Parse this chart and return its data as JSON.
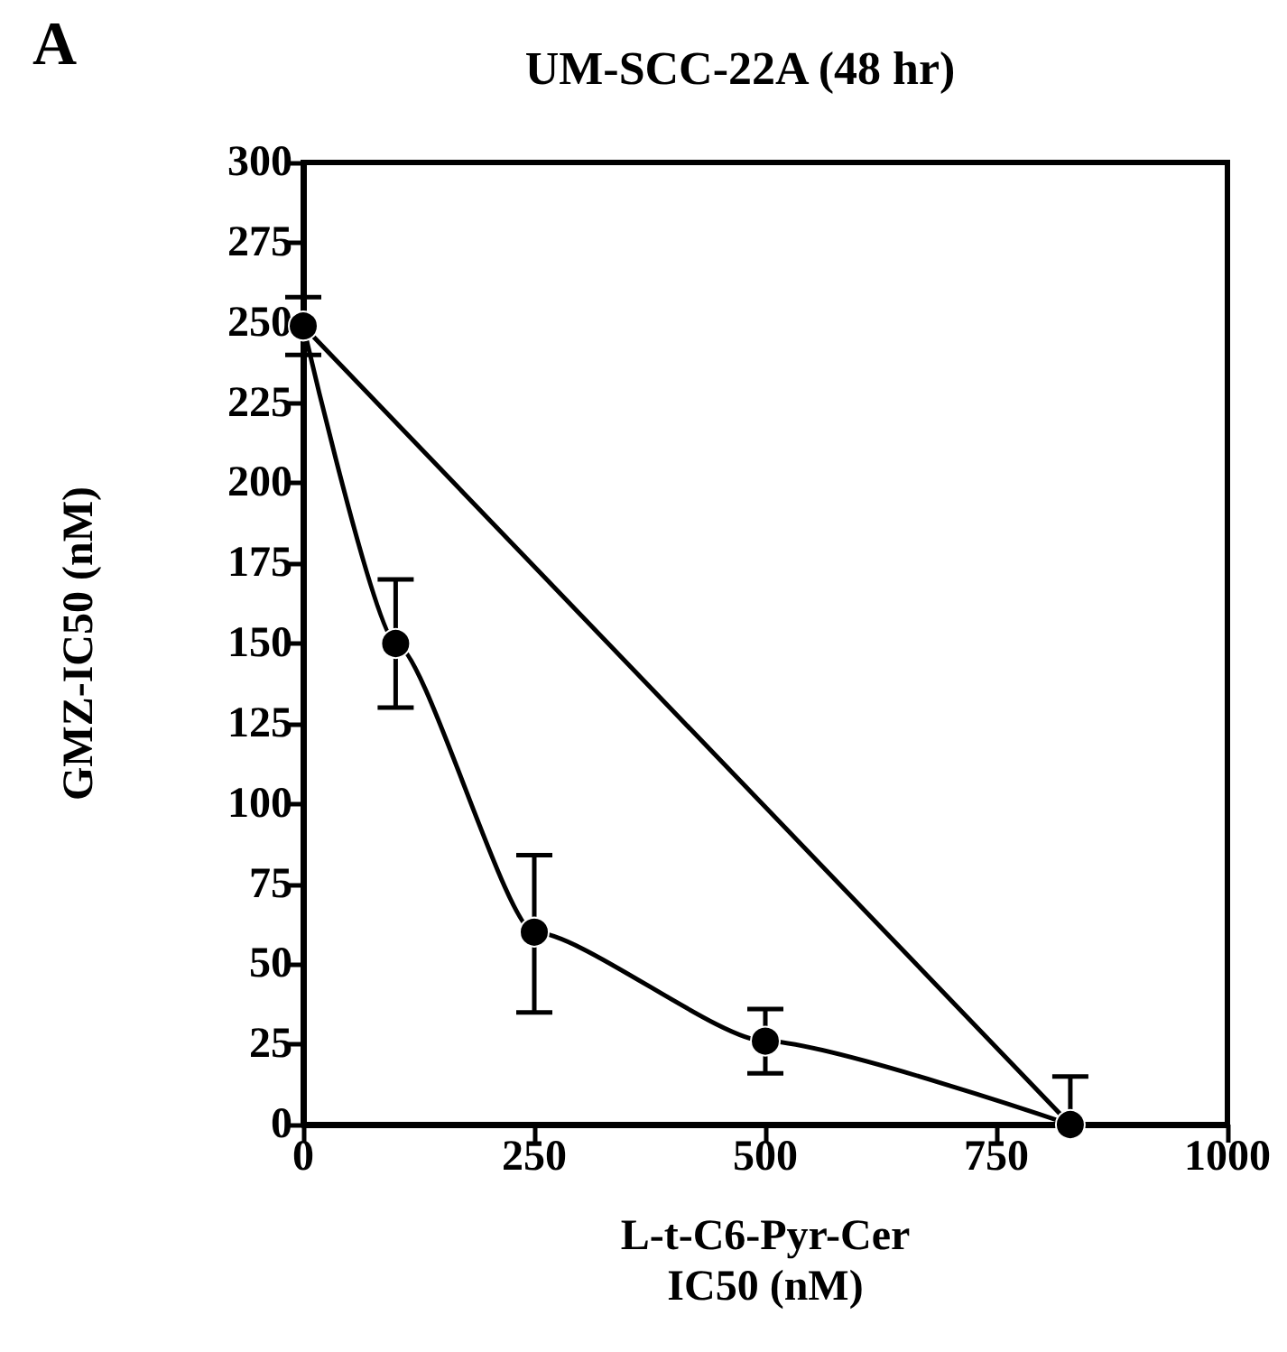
{
  "chart_data": {
    "type": "line",
    "title": "UM-SCC-22A (48 hr)",
    "xlabel": "L-t-C6-Pyr-Cer\nIC50 (nM)",
    "ylabel": "GMZ-IC50 (nM)",
    "annotations": [
      "A"
    ],
    "xlim": [
      0,
      1000
    ],
    "xticks": [
      0,
      250,
      500,
      750,
      1000
    ],
    "ylim": [
      0,
      300
    ],
    "yticks": [
      0,
      25,
      50,
      75,
      100,
      125,
      150,
      175,
      200,
      225,
      250,
      275,
      300
    ],
    "grid": false,
    "marker": "circle",
    "line_style": "solid",
    "series": [
      {
        "color": "#000000",
        "x": [
          0,
          100,
          250,
          500,
          830
        ],
        "values": [
          249,
          150,
          60,
          26,
          0
        ],
        "errors": [
          [
            240,
            258
          ],
          [
            130,
            170
          ],
          [
            35,
            84
          ],
          [
            16,
            36
          ],
          [
            0,
            15
          ]
        ]
      },
      {
        "color": "#000000",
        "marker": "none",
        "x": [
          0,
          830
        ],
        "values": [
          249,
          0
        ]
      }
    ]
  }
}
